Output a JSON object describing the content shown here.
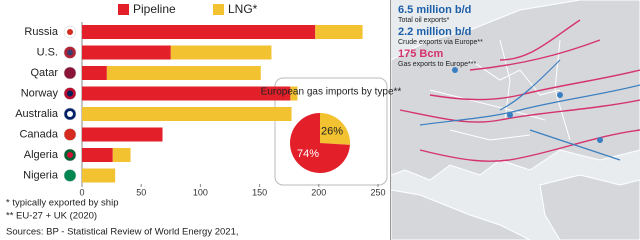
{
  "chart_data": [
    {
      "type": "bar",
      "orientation": "horizontal",
      "stacked": true,
      "categories": [
        "Russia",
        "U.S.",
        "Qatar",
        "Norway",
        "Australia",
        "Canada",
        "Algeria",
        "Nigeria"
      ],
      "series": [
        {
          "name": "Pipeline",
          "color": "#e3202a",
          "values": [
            197,
            75,
            21,
            176,
            0,
            68,
            26,
            0
          ]
        },
        {
          "name": "LNG*",
          "color": "#f2c230",
          "values": [
            40,
            85,
            130,
            6,
            177,
            0,
            15,
            28
          ]
        }
      ],
      "xlim": [
        0,
        250
      ],
      "xticks": [
        0,
        50,
        100,
        150,
        200,
        250
      ],
      "grid": false
    },
    {
      "type": "pie",
      "title": "European gas imports by type**",
      "values": [
        26,
        74
      ],
      "value_labels": [
        "26%",
        "74%"
      ],
      "colors": [
        "#f2c230",
        "#e3202a"
      ]
    }
  ],
  "footnotes": [
    "*  typically exported by ship",
    "**  EU-27 + UK (2020)",
    "Sources: BP - Statistical Review of World Energy 2021,"
  ],
  "map_panel": {
    "stats": [
      {
        "value": "6.5 million b/d",
        "label": "Total oil exports*"
      },
      {
        "value": "2.2 million b/d",
        "label": "Crude exports via Europe**"
      },
      {
        "value": "175 Bcm",
        "label": "Gas exports to Europe***"
      }
    ]
  }
}
